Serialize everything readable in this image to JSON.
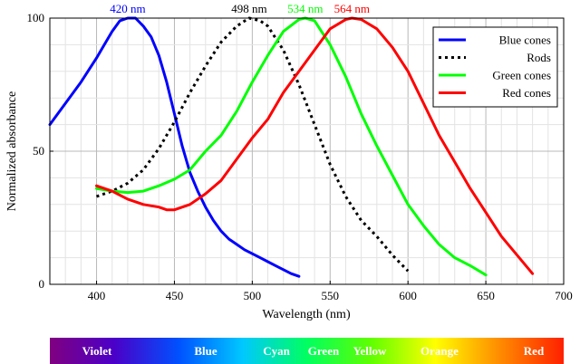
{
  "chart_data": {
    "type": "line",
    "xlabel": "Wavelength (nm)",
    "ylabel": "Normalized absorbance",
    "xlim": [
      370,
      700
    ],
    "ylim": [
      0,
      100
    ],
    "xticks": [
      400,
      450,
      500,
      550,
      600,
      650,
      700
    ],
    "yticks": [
      0,
      50,
      100
    ],
    "grid": true,
    "legend_position": "top-right",
    "series": [
      {
        "name": "Blue cones",
        "color": "#0000ff",
        "dash": "solid",
        "points": [
          [
            370,
            60
          ],
          [
            380,
            68
          ],
          [
            390,
            76
          ],
          [
            400,
            85
          ],
          [
            405,
            90
          ],
          [
            410,
            95
          ],
          [
            415,
            99
          ],
          [
            420,
            100
          ],
          [
            425,
            100
          ],
          [
            430,
            97
          ],
          [
            435,
            93
          ],
          [
            440,
            86
          ],
          [
            445,
            76
          ],
          [
            450,
            64
          ],
          [
            455,
            52
          ],
          [
            460,
            42
          ],
          [
            465,
            35
          ],
          [
            470,
            29
          ],
          [
            475,
            24
          ],
          [
            480,
            20
          ],
          [
            485,
            17
          ],
          [
            490,
            15
          ],
          [
            495,
            13
          ],
          [
            500,
            11.5
          ],
          [
            505,
            10
          ],
          [
            510,
            8.5
          ],
          [
            515,
            7
          ],
          [
            520,
            5.5
          ],
          [
            525,
            4
          ],
          [
            530,
            3
          ]
        ]
      },
      {
        "name": "Rods",
        "color": "#000000",
        "dash": "dotted",
        "points": [
          [
            400,
            33
          ],
          [
            410,
            35
          ],
          [
            420,
            38
          ],
          [
            430,
            43
          ],
          [
            440,
            51
          ],
          [
            450,
            61
          ],
          [
            460,
            72
          ],
          [
            470,
            82
          ],
          [
            480,
            91
          ],
          [
            490,
            97
          ],
          [
            498,
            100
          ],
          [
            505,
            99
          ],
          [
            510,
            97
          ],
          [
            520,
            88
          ],
          [
            530,
            75
          ],
          [
            540,
            60
          ],
          [
            550,
            45
          ],
          [
            560,
            33
          ],
          [
            570,
            24
          ],
          [
            580,
            18
          ],
          [
            590,
            11
          ],
          [
            600,
            5
          ]
        ]
      },
      {
        "name": "Green cones",
        "color": "#00ff00",
        "dash": "solid",
        "points": [
          [
            400,
            36
          ],
          [
            410,
            35
          ],
          [
            420,
            34.5
          ],
          [
            430,
            35
          ],
          [
            440,
            37
          ],
          [
            450,
            39.5
          ],
          [
            460,
            43
          ],
          [
            470,
            50
          ],
          [
            480,
            56
          ],
          [
            490,
            65
          ],
          [
            500,
            76
          ],
          [
            510,
            86
          ],
          [
            520,
            95
          ],
          [
            530,
            99.5
          ],
          [
            534,
            100
          ],
          [
            540,
            99
          ],
          [
            550,
            90
          ],
          [
            560,
            78
          ],
          [
            570,
            64
          ],
          [
            580,
            52
          ],
          [
            590,
            41
          ],
          [
            600,
            30
          ],
          [
            610,
            22
          ],
          [
            620,
            15
          ],
          [
            630,
            10
          ],
          [
            640,
            7
          ],
          [
            650,
            3.5
          ]
        ]
      },
      {
        "name": "Red cones",
        "color": "#ff0000",
        "dash": "solid",
        "points": [
          [
            400,
            37
          ],
          [
            410,
            35
          ],
          [
            420,
            32
          ],
          [
            430,
            30
          ],
          [
            440,
            29
          ],
          [
            445,
            28
          ],
          [
            450,
            28
          ],
          [
            460,
            30
          ],
          [
            470,
            34
          ],
          [
            480,
            39
          ],
          [
            490,
            47
          ],
          [
            500,
            55
          ],
          [
            510,
            62
          ],
          [
            520,
            72
          ],
          [
            530,
            80
          ],
          [
            540,
            88
          ],
          [
            550,
            96
          ],
          [
            560,
            99.5
          ],
          [
            564,
            100
          ],
          [
            570,
            99.5
          ],
          [
            580,
            96
          ],
          [
            590,
            89
          ],
          [
            600,
            80
          ],
          [
            610,
            68
          ],
          [
            620,
            56
          ],
          [
            630,
            46
          ],
          [
            640,
            36
          ],
          [
            650,
            27
          ],
          [
            660,
            18
          ],
          [
            670,
            11
          ],
          [
            680,
            4
          ]
        ]
      }
    ],
    "peak_labels": [
      {
        "text": "420 nm",
        "x": 420,
        "color": "#0000ff"
      },
      {
        "text": "498 nm",
        "x": 498,
        "color": "#000000"
      },
      {
        "text": "534 nm",
        "x": 534,
        "color": "#00ff00"
      },
      {
        "text": "564 nm",
        "x": 564,
        "color": "#ff0000"
      }
    ],
    "spectrum_bar": {
      "labels": [
        "Violet",
        "Blue",
        "Cyan",
        "Green",
        "Yellow",
        "Orange",
        "Red"
      ],
      "colors": [
        "#800080",
        "#4b00c8",
        "#0050ff",
        "#00c8ff",
        "#00ff60",
        "#60ff00",
        "#ffff00",
        "#ff8c00",
        "#ff2000"
      ]
    }
  }
}
